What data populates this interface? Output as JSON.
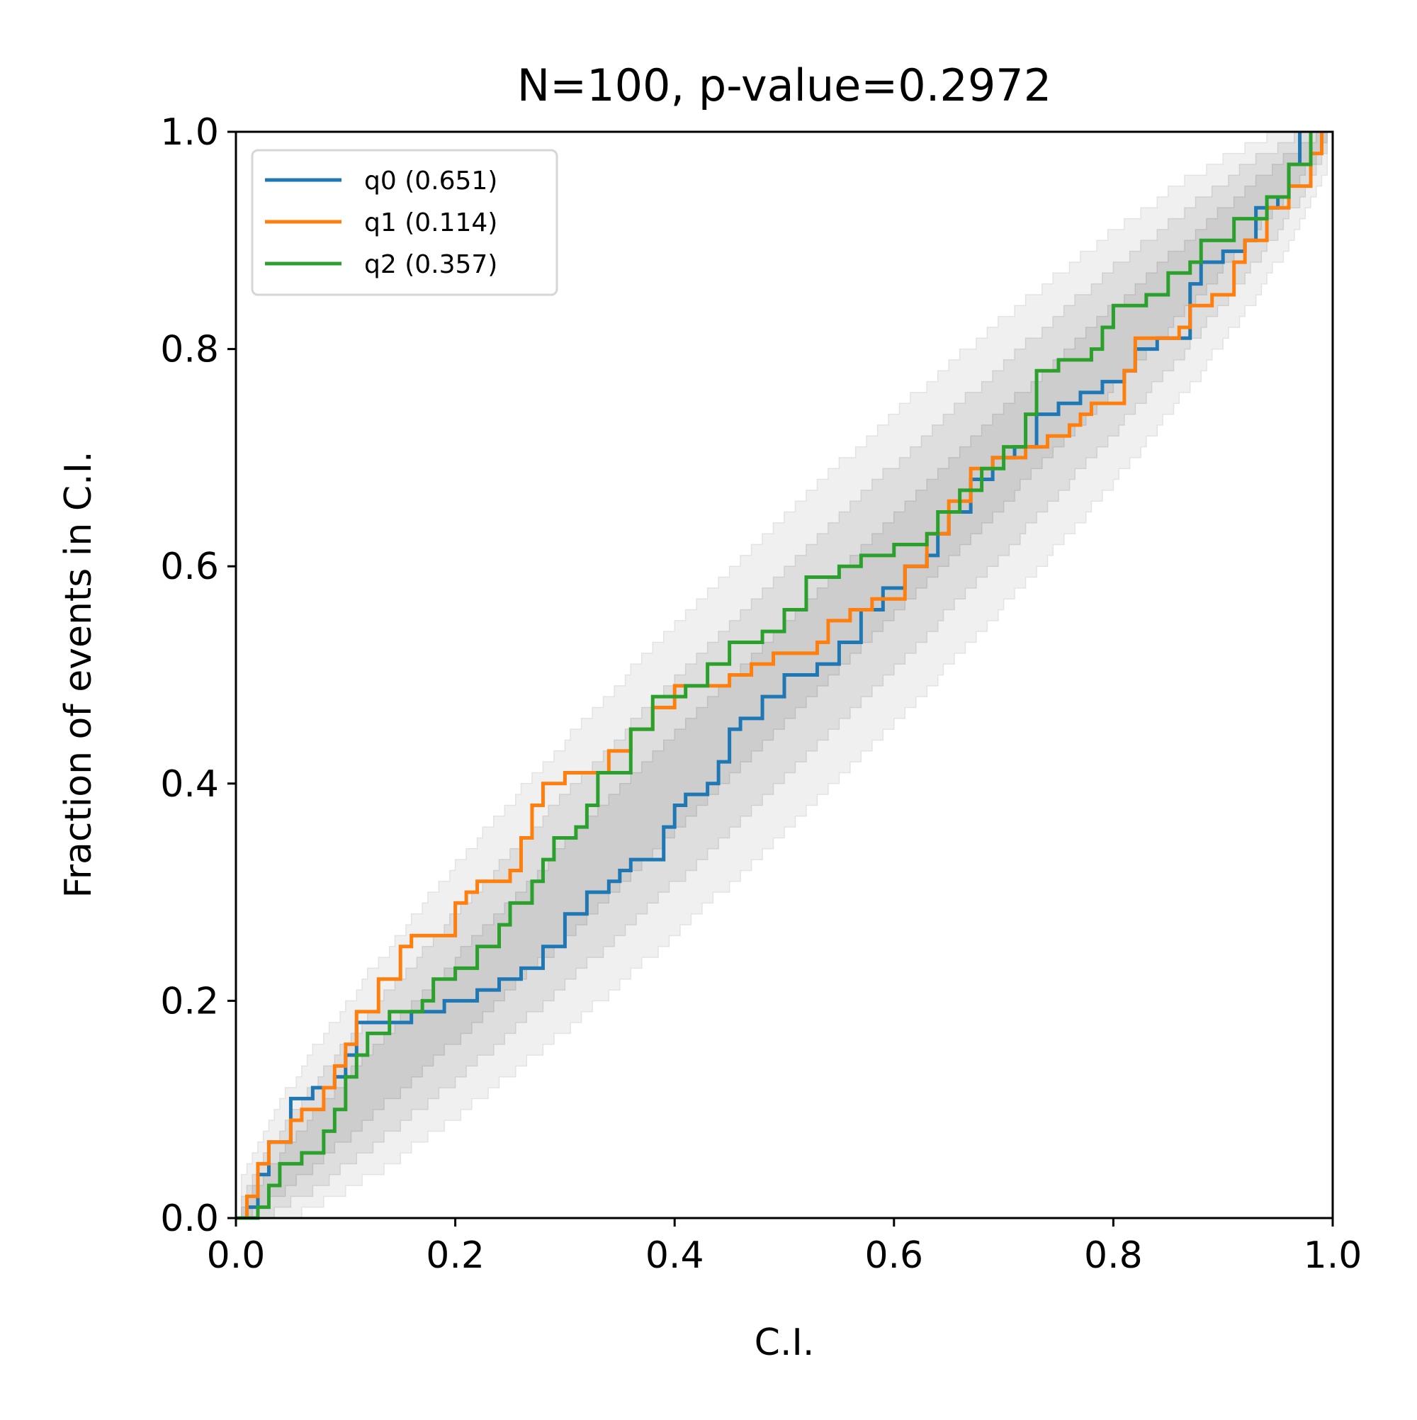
{
  "chart_data": {
    "type": "line",
    "title": "N=100, p-value=0.2972",
    "xlabel": "C.I.",
    "ylabel": "Fraction of events in C.I.",
    "xlim": [
      0,
      1
    ],
    "ylim": [
      0,
      1
    ],
    "xticks": [
      "0.0",
      "0.2",
      "0.4",
      "0.6",
      "0.8",
      "1.0"
    ],
    "yticks": [
      "0.0",
      "0.2",
      "0.4",
      "0.6",
      "0.8",
      "1.0"
    ],
    "grid": false,
    "legend_position": "top-left",
    "confidence_bands": {
      "n_events": 100,
      "levels": [
        0.68,
        0.95,
        0.997
      ],
      "colors": [
        "#bfbfbf",
        "#d0d0d0",
        "#e3e3e3"
      ]
    },
    "series": [
      {
        "name": "q0 (0.651)",
        "color": "#1f77b4",
        "points": [
          [
            0.0,
            0.0
          ],
          [
            0.01,
            0.01
          ],
          [
            0.02,
            0.04
          ],
          [
            0.03,
            0.07
          ],
          [
            0.05,
            0.11
          ],
          [
            0.06,
            0.11
          ],
          [
            0.07,
            0.12
          ],
          [
            0.09,
            0.13
          ],
          [
            0.1,
            0.15
          ],
          [
            0.11,
            0.18
          ],
          [
            0.16,
            0.19
          ],
          [
            0.19,
            0.2
          ],
          [
            0.22,
            0.21
          ],
          [
            0.24,
            0.22
          ],
          [
            0.26,
            0.23
          ],
          [
            0.28,
            0.25
          ],
          [
            0.3,
            0.28
          ],
          [
            0.32,
            0.3
          ],
          [
            0.34,
            0.31
          ],
          [
            0.35,
            0.32
          ],
          [
            0.36,
            0.33
          ],
          [
            0.38,
            0.33
          ],
          [
            0.39,
            0.36
          ],
          [
            0.4,
            0.38
          ],
          [
            0.41,
            0.39
          ],
          [
            0.43,
            0.4
          ],
          [
            0.44,
            0.42
          ],
          [
            0.45,
            0.45
          ],
          [
            0.46,
            0.46
          ],
          [
            0.48,
            0.48
          ],
          [
            0.5,
            0.5
          ],
          [
            0.53,
            0.51
          ],
          [
            0.55,
            0.53
          ],
          [
            0.57,
            0.56
          ],
          [
            0.59,
            0.58
          ],
          [
            0.61,
            0.6
          ],
          [
            0.63,
            0.61
          ],
          [
            0.64,
            0.63
          ],
          [
            0.65,
            0.65
          ],
          [
            0.67,
            0.68
          ],
          [
            0.69,
            0.7
          ],
          [
            0.71,
            0.71
          ],
          [
            0.73,
            0.74
          ],
          [
            0.75,
            0.75
          ],
          [
            0.77,
            0.76
          ],
          [
            0.79,
            0.77
          ],
          [
            0.81,
            0.78
          ],
          [
            0.82,
            0.8
          ],
          [
            0.84,
            0.81
          ],
          [
            0.86,
            0.81
          ],
          [
            0.87,
            0.86
          ],
          [
            0.88,
            0.88
          ],
          [
            0.9,
            0.89
          ],
          [
            0.92,
            0.9
          ],
          [
            0.93,
            0.93
          ],
          [
            0.95,
            0.94
          ],
          [
            0.96,
            0.97
          ],
          [
            0.97,
            1.0
          ]
        ]
      },
      {
        "name": "q1 (0.114)",
        "color": "#ff7f0e",
        "points": [
          [
            0.0,
            0.0
          ],
          [
            0.01,
            0.02
          ],
          [
            0.02,
            0.05
          ],
          [
            0.03,
            0.07
          ],
          [
            0.05,
            0.09
          ],
          [
            0.06,
            0.1
          ],
          [
            0.08,
            0.12
          ],
          [
            0.09,
            0.14
          ],
          [
            0.1,
            0.16
          ],
          [
            0.11,
            0.19
          ],
          [
            0.13,
            0.22
          ],
          [
            0.15,
            0.25
          ],
          [
            0.16,
            0.26
          ],
          [
            0.19,
            0.26
          ],
          [
            0.2,
            0.29
          ],
          [
            0.21,
            0.3
          ],
          [
            0.22,
            0.31
          ],
          [
            0.25,
            0.32
          ],
          [
            0.26,
            0.35
          ],
          [
            0.27,
            0.38
          ],
          [
            0.28,
            0.4
          ],
          [
            0.3,
            0.41
          ],
          [
            0.33,
            0.41
          ],
          [
            0.34,
            0.43
          ],
          [
            0.36,
            0.45
          ],
          [
            0.38,
            0.47
          ],
          [
            0.4,
            0.49
          ],
          [
            0.42,
            0.49
          ],
          [
            0.45,
            0.5
          ],
          [
            0.47,
            0.51
          ],
          [
            0.49,
            0.52
          ],
          [
            0.53,
            0.53
          ],
          [
            0.54,
            0.55
          ],
          [
            0.56,
            0.56
          ],
          [
            0.58,
            0.57
          ],
          [
            0.61,
            0.6
          ],
          [
            0.63,
            0.63
          ],
          [
            0.65,
            0.66
          ],
          [
            0.67,
            0.69
          ],
          [
            0.69,
            0.7
          ],
          [
            0.72,
            0.71
          ],
          [
            0.74,
            0.72
          ],
          [
            0.76,
            0.73
          ],
          [
            0.77,
            0.74
          ],
          [
            0.78,
            0.75
          ],
          [
            0.81,
            0.78
          ],
          [
            0.82,
            0.81
          ],
          [
            0.86,
            0.82
          ],
          [
            0.87,
            0.84
          ],
          [
            0.89,
            0.85
          ],
          [
            0.91,
            0.88
          ],
          [
            0.92,
            0.9
          ],
          [
            0.94,
            0.93
          ],
          [
            0.96,
            0.95
          ],
          [
            0.98,
            0.98
          ],
          [
            0.99,
            1.0
          ]
        ]
      },
      {
        "name": "q2 (0.357)",
        "color": "#2ca02c",
        "points": [
          [
            0.0,
            0.0
          ],
          [
            0.02,
            0.01
          ],
          [
            0.03,
            0.03
          ],
          [
            0.04,
            0.05
          ],
          [
            0.06,
            0.06
          ],
          [
            0.08,
            0.08
          ],
          [
            0.09,
            0.1
          ],
          [
            0.1,
            0.13
          ],
          [
            0.11,
            0.15
          ],
          [
            0.12,
            0.17
          ],
          [
            0.14,
            0.19
          ],
          [
            0.17,
            0.2
          ],
          [
            0.18,
            0.22
          ],
          [
            0.2,
            0.23
          ],
          [
            0.22,
            0.25
          ],
          [
            0.24,
            0.27
          ],
          [
            0.25,
            0.29
          ],
          [
            0.27,
            0.31
          ],
          [
            0.28,
            0.33
          ],
          [
            0.29,
            0.35
          ],
          [
            0.31,
            0.36
          ],
          [
            0.32,
            0.38
          ],
          [
            0.33,
            0.41
          ],
          [
            0.36,
            0.45
          ],
          [
            0.38,
            0.48
          ],
          [
            0.41,
            0.49
          ],
          [
            0.43,
            0.51
          ],
          [
            0.45,
            0.53
          ],
          [
            0.48,
            0.54
          ],
          [
            0.5,
            0.56
          ],
          [
            0.52,
            0.59
          ],
          [
            0.55,
            0.6
          ],
          [
            0.57,
            0.61
          ],
          [
            0.6,
            0.62
          ],
          [
            0.63,
            0.63
          ],
          [
            0.64,
            0.65
          ],
          [
            0.66,
            0.67
          ],
          [
            0.68,
            0.69
          ],
          [
            0.7,
            0.71
          ],
          [
            0.72,
            0.74
          ],
          [
            0.73,
            0.78
          ],
          [
            0.75,
            0.79
          ],
          [
            0.78,
            0.8
          ],
          [
            0.79,
            0.82
          ],
          [
            0.8,
            0.84
          ],
          [
            0.83,
            0.85
          ],
          [
            0.85,
            0.87
          ],
          [
            0.87,
            0.88
          ],
          [
            0.88,
            0.9
          ],
          [
            0.91,
            0.92
          ],
          [
            0.94,
            0.94
          ],
          [
            0.96,
            0.97
          ],
          [
            0.98,
            1.0
          ]
        ]
      }
    ]
  }
}
